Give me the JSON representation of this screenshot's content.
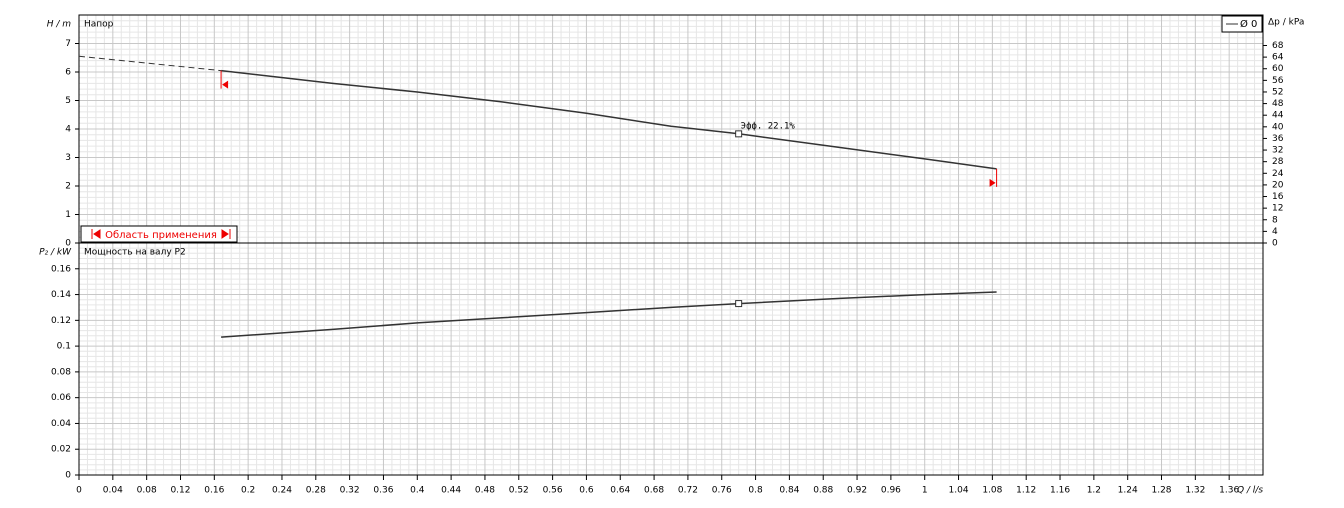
{
  "chart_data": [
    {
      "type": "line",
      "title": "Напор",
      "ylabel": "H / m",
      "y2label": "Δp / kPa",
      "x": [
        0,
        0.168,
        0.3,
        0.4,
        0.5,
        0.6,
        0.7,
        0.78,
        0.9,
        1.0,
        1.085
      ],
      "series": [
        {
          "name": "Ø 0",
          "color": "#333333",
          "values": [
            null,
            6.05,
            5.6,
            5.3,
            4.95,
            4.55,
            4.1,
            3.83,
            3.35,
            2.95,
            2.6
          ]
        },
        {
          "color": "#333333",
          "dashed": true,
          "values": [
            6.55,
            6.05,
            null,
            null,
            null,
            null,
            null,
            null,
            null,
            null,
            null
          ]
        }
      ],
      "ylim": [
        0,
        8
      ],
      "yticks": [
        0,
        1,
        2,
        3,
        4,
        5,
        6,
        7
      ],
      "y2lim": [
        0,
        78.5
      ],
      "y2ticks": [
        0,
        4,
        8,
        12,
        16,
        20,
        24,
        28,
        32,
        36,
        40,
        44,
        48,
        52,
        56,
        60,
        64,
        68
      ],
      "annotation": {
        "text": "Эфф. 22.1%",
        "x": 0.78,
        "y": 3.83
      },
      "range_label": "Область применения",
      "grid": true,
      "legend": "upper right"
    },
    {
      "type": "line",
      "title": "Мощность на валу P2",
      "ylabel": "P₂ / kW",
      "xlabel": "Q / l/s",
      "x": [
        0.168,
        0.3,
        0.4,
        0.5,
        0.6,
        0.7,
        0.78,
        0.9,
        1.0,
        1.085
      ],
      "series": [
        {
          "color": "#333333",
          "values": [
            0.107,
            0.113,
            0.118,
            0.122,
            0.126,
            0.13,
            0.133,
            0.137,
            0.14,
            0.142
          ]
        }
      ],
      "ylim": [
        0,
        0.18
      ],
      "yticks": [
        0,
        0.02,
        0.04,
        0.06,
        0.08,
        0.1,
        0.12,
        0.14,
        0.16
      ],
      "xlim": [
        0,
        1.4
      ],
      "xticks": [
        0,
        0.04,
        0.08,
        0.12,
        0.16,
        0.2,
        0.24,
        0.28,
        0.32,
        0.36,
        0.4,
        0.44,
        0.48,
        0.52,
        0.56,
        0.6,
        0.64,
        0.68,
        0.72,
        0.76,
        0.8,
        0.84,
        0.88,
        0.92,
        0.96,
        1,
        1.04,
        1.08,
        1.12,
        1.16,
        1.2,
        1.24,
        1.28,
        1.32,
        1.36
      ],
      "marker": {
        "x": 0.78,
        "y": 0.133
      },
      "grid": true
    }
  ]
}
